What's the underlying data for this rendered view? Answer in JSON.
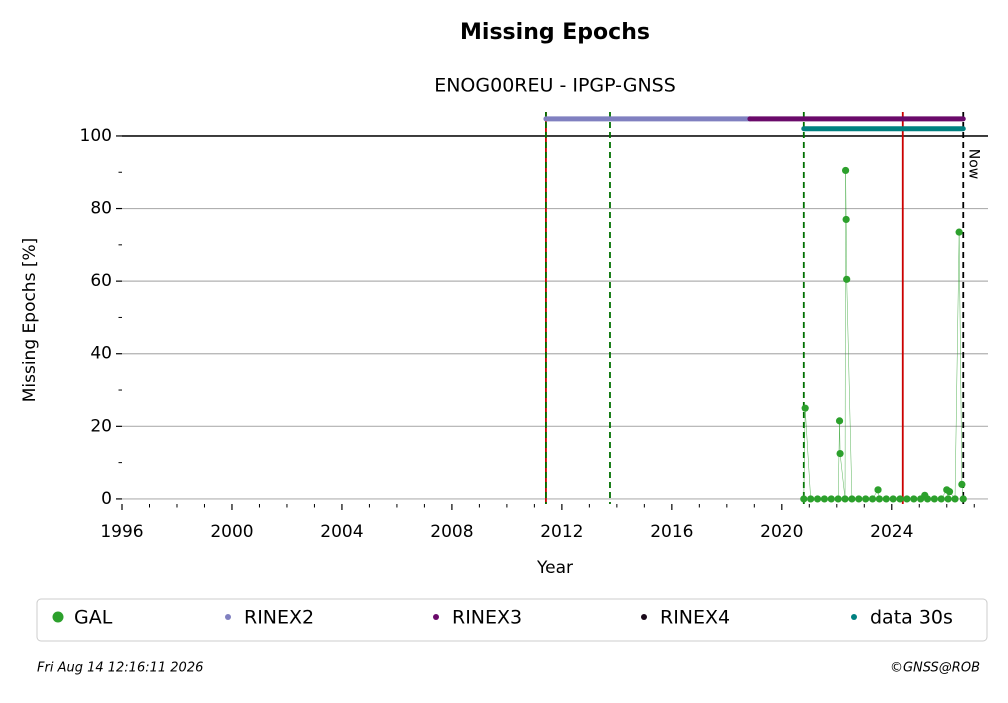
{
  "chart_data": {
    "type": "scatter",
    "title": "Missing Epochs",
    "subtitle": "ENOG00REU - IPGP-GNSS",
    "xlabel": "Year",
    "ylabel": "Missing Epochs [%]",
    "xlim": [
      1996,
      2027.5
    ],
    "ylim": [
      -1.4,
      106.6
    ],
    "xticks": [
      1996,
      2000,
      2004,
      2008,
      2012,
      2016,
      2020,
      2024
    ],
    "xminorticks": [
      1997,
      1998,
      1999,
      2001,
      2002,
      2003,
      2005,
      2006,
      2007,
      2009,
      2010,
      2011,
      2013,
      2014,
      2015,
      2017,
      2018,
      2019,
      2021,
      2022,
      2023,
      2025,
      2026,
      2027
    ],
    "yticks": [
      0,
      20,
      40,
      60,
      80,
      100
    ],
    "yminorticks": [
      10,
      30,
      50,
      70,
      90
    ],
    "grid": true,
    "hline": 100,
    "series": [
      {
        "name": "GAL",
        "color": "#2ca02c",
        "x": [
          2020.8,
          2020.85,
          2021.05,
          2021.3,
          2021.55,
          2021.8,
          2022.05,
          2022.1,
          2022.12,
          2022.3,
          2022.32,
          2022.34,
          2022.36,
          2022.55,
          2022.8,
          2023.05,
          2023.3,
          2023.5,
          2023.55,
          2023.8,
          2024.05,
          2024.3,
          2024.55,
          2024.8,
          2025.05,
          2025.2,
          2025.3,
          2025.55,
          2025.8,
          2026.0,
          2026.05,
          2026.1,
          2026.3,
          2026.45,
          2026.55,
          2026.6
        ],
        "values": [
          0,
          25,
          0,
          0,
          0,
          0,
          0,
          21.5,
          12.5,
          0,
          90.5,
          77,
          60.5,
          0,
          0,
          0,
          0,
          2.5,
          0,
          0,
          0,
          0,
          0,
          0,
          0,
          1,
          0,
          0,
          0,
          2.5,
          0,
          2,
          0,
          73.5,
          4,
          0
        ]
      },
      {
        "name": "RINEX2",
        "color": "#8080c0",
        "start": 2011.42,
        "end": 2018.84,
        "level": 104.7
      },
      {
        "name": "RINEX3",
        "color": "#6a0a6a",
        "start": 2018.84,
        "end": 2026.6,
        "level": 104.7
      },
      {
        "name": "RINEX4",
        "color": "#1a0a1a"
      },
      {
        "name": "data 30s",
        "color": "#008080",
        "start": 2020.8,
        "end": 2026.6,
        "level": 102
      }
    ],
    "vlines": [
      {
        "x": 2011.42,
        "color": "#cc0000",
        "dashed": false
      },
      {
        "x": 2011.42,
        "color": "#007000",
        "dashed": true
      },
      {
        "x": 2013.75,
        "color": "#007000",
        "dashed": true
      },
      {
        "x": 2020.8,
        "color": "#007000",
        "dashed": true
      },
      {
        "x": 2024.4,
        "color": "#cc0000",
        "dashed": false
      },
      {
        "x": 2026.6,
        "color": "#000000",
        "dashed": true,
        "label": "Now"
      }
    ],
    "footer_left": "Fri Aug 14 12:16:11 2026",
    "footer_right": "©GNSS@ROB"
  }
}
